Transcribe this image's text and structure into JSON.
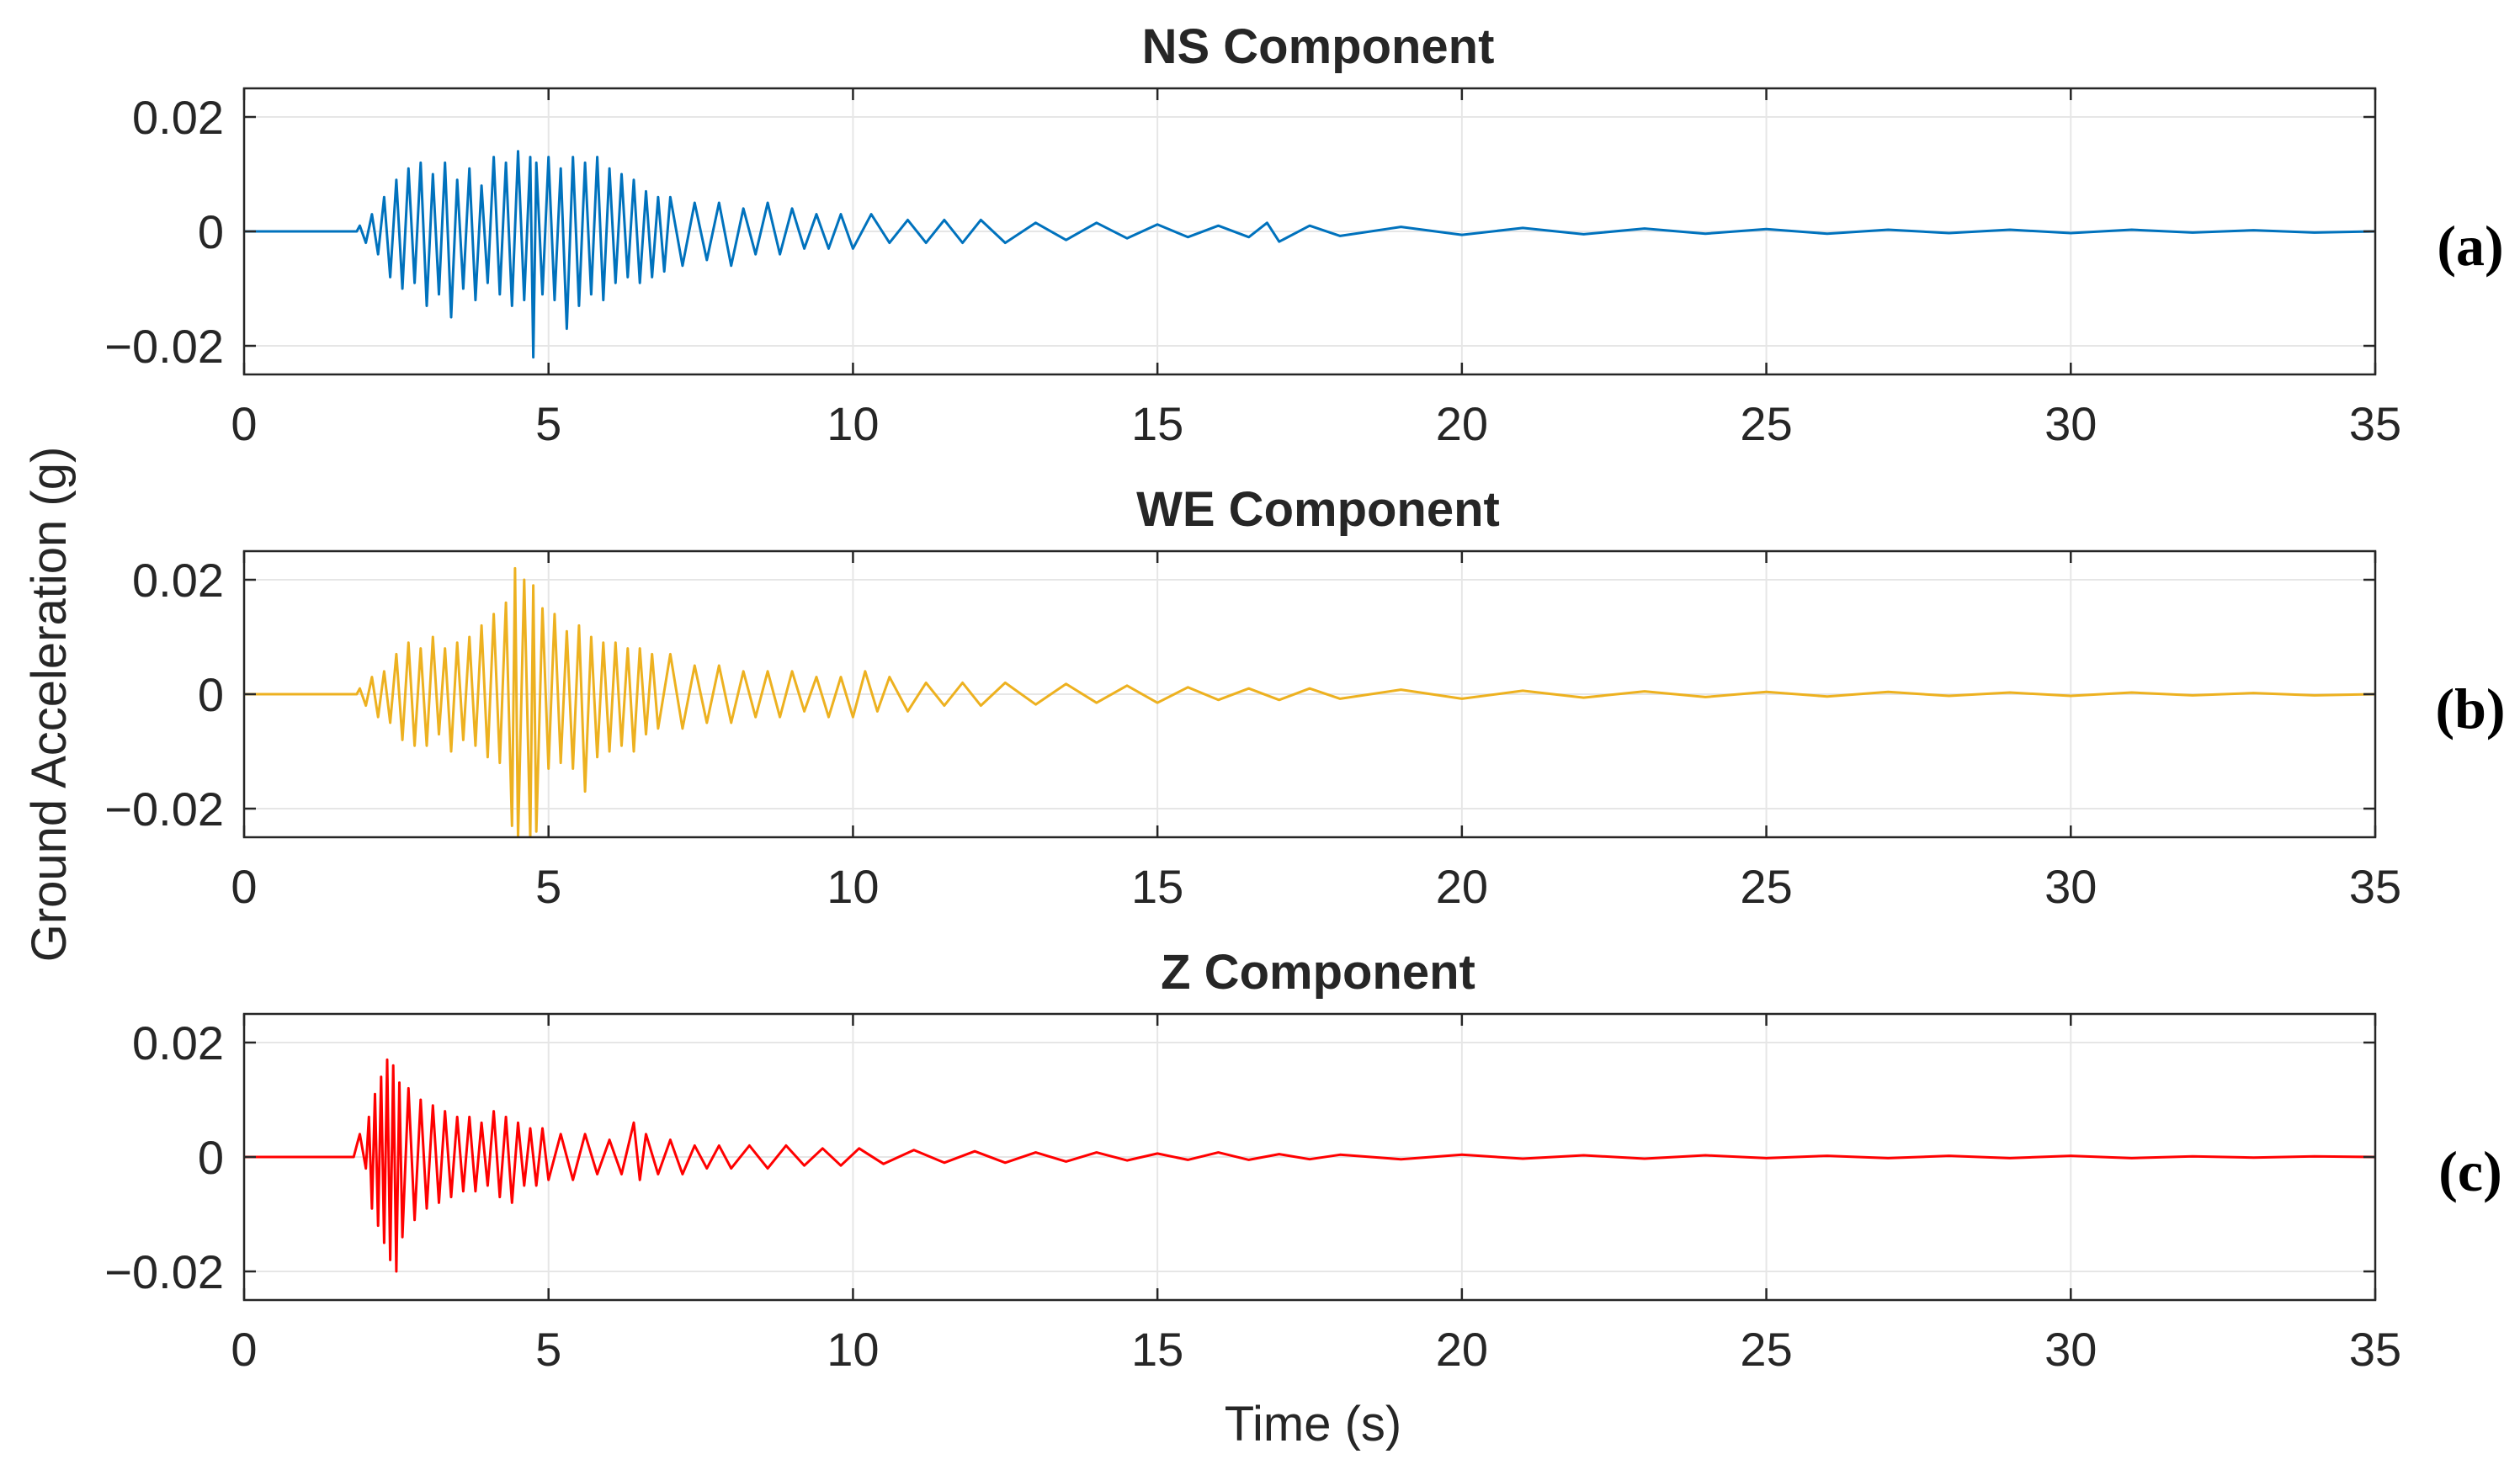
{
  "figure": {
    "ylabel": "Ground Acceleration (g)",
    "xlabel": "Time (s)"
  },
  "chart_data": [
    {
      "type": "line",
      "title": "NS Component",
      "panel_label": "(a)",
      "color": "#0072BD",
      "xlim": [
        0,
        35
      ],
      "ylim": [
        -0.025,
        0.025
      ],
      "xticks": [
        0,
        5,
        10,
        15,
        20,
        25,
        30,
        35
      ],
      "yticks": [
        -0.02,
        0,
        0.02
      ],
      "xtick_labels": [
        "0",
        "5",
        "10",
        "15",
        "20",
        "25",
        "30",
        "35"
      ],
      "ytick_labels": [
        "−0.02",
        "0",
        "0.02"
      ],
      "grid": true,
      "series": [
        {
          "x": [
            0,
            1.85,
            1.9,
            2.0,
            2.1,
            2.2,
            2.3,
            2.4,
            2.5,
            2.6,
            2.7,
            2.8,
            2.9,
            3.0,
            3.1,
            3.2,
            3.3,
            3.4,
            3.5,
            3.6,
            3.7,
            3.8,
            3.9,
            4.0,
            4.1,
            4.2,
            4.3,
            4.4,
            4.5,
            4.6,
            4.7,
            4.75,
            4.8,
            4.9,
            5.0,
            5.1,
            5.2,
            5.3,
            5.4,
            5.5,
            5.6,
            5.7,
            5.8,
            5.9,
            6.0,
            6.1,
            6.2,
            6.3,
            6.4,
            6.5,
            6.6,
            6.7,
            6.8,
            6.9,
            7.0,
            7.2,
            7.4,
            7.6,
            7.8,
            8.0,
            8.2,
            8.4,
            8.6,
            8.8,
            9.0,
            9.2,
            9.4,
            9.6,
            9.8,
            10.0,
            10.3,
            10.6,
            10.9,
            11.2,
            11.5,
            11.8,
            12.1,
            12.5,
            13.0,
            13.5,
            14.0,
            14.5,
            15.0,
            15.5,
            16.0,
            16.5,
            16.8,
            17.0,
            17.5,
            18.0,
            19.0,
            20.0,
            21.0,
            22.0,
            23.0,
            24.0,
            25.0,
            26.0,
            27.0,
            28.0,
            29.0,
            30.0,
            31.0,
            32.0,
            33.0,
            34.0,
            35.0
          ],
          "y": [
            0,
            0,
            0.001,
            -0.002,
            0.003,
            -0.004,
            0.006,
            -0.008,
            0.009,
            -0.01,
            0.011,
            -0.009,
            0.012,
            -0.013,
            0.01,
            -0.011,
            0.012,
            -0.015,
            0.009,
            -0.01,
            0.011,
            -0.012,
            0.008,
            -0.009,
            0.013,
            -0.011,
            0.012,
            -0.013,
            0.014,
            -0.012,
            0.013,
            -0.022,
            0.012,
            -0.011,
            0.013,
            -0.012,
            0.011,
            -0.017,
            0.013,
            -0.013,
            0.012,
            -0.011,
            0.013,
            -0.012,
            0.011,
            -0.009,
            0.01,
            -0.008,
            0.009,
            -0.009,
            0.007,
            -0.008,
            0.006,
            -0.007,
            0.006,
            -0.006,
            0.005,
            -0.005,
            0.005,
            -0.006,
            0.004,
            -0.004,
            0.005,
            -0.004,
            0.004,
            -0.003,
            0.003,
            -0.003,
            0.003,
            -0.003,
            0.003,
            -0.002,
            0.002,
            -0.002,
            0.002,
            -0.002,
            0.002,
            -0.002,
            0.0015,
            -0.0015,
            0.0015,
            -0.0012,
            0.0012,
            -0.001,
            0.001,
            -0.001,
            0.0015,
            -0.0018,
            0.001,
            -0.0008,
            0.0008,
            -0.0006,
            0.0006,
            -0.0005,
            0.0005,
            -0.0004,
            0.0004,
            -0.0004,
            0.0003,
            -0.0003,
            0.0003,
            -0.0003,
            0.0003,
            -0.0002,
            0.0002,
            -0.0002,
            0
          ]
        }
      ]
    },
    {
      "type": "line",
      "title": "WE Component",
      "panel_label": "(b)",
      "color": "#EDB120",
      "xlim": [
        0,
        35
      ],
      "ylim": [
        -0.025,
        0.025
      ],
      "xticks": [
        0,
        5,
        10,
        15,
        20,
        25,
        30,
        35
      ],
      "yticks": [
        -0.02,
        0,
        0.02
      ],
      "xtick_labels": [
        "0",
        "5",
        "10",
        "15",
        "20",
        "25",
        "30",
        "35"
      ],
      "ytick_labels": [
        "−0.02",
        "0",
        "0.02"
      ],
      "grid": true,
      "series": [
        {
          "x": [
            0,
            1.85,
            1.9,
            2.0,
            2.1,
            2.2,
            2.3,
            2.4,
            2.5,
            2.6,
            2.7,
            2.8,
            2.9,
            3.0,
            3.1,
            3.2,
            3.3,
            3.4,
            3.5,
            3.6,
            3.7,
            3.8,
            3.9,
            4.0,
            4.1,
            4.2,
            4.3,
            4.4,
            4.45,
            4.5,
            4.6,
            4.7,
            4.75,
            4.8,
            4.9,
            5.0,
            5.1,
            5.2,
            5.3,
            5.4,
            5.5,
            5.6,
            5.7,
            5.8,
            5.9,
            6.0,
            6.1,
            6.2,
            6.3,
            6.4,
            6.5,
            6.6,
            6.7,
            6.8,
            7.0,
            7.2,
            7.4,
            7.6,
            7.8,
            8.0,
            8.2,
            8.4,
            8.6,
            8.8,
            9.0,
            9.2,
            9.4,
            9.6,
            9.8,
            10.0,
            10.2,
            10.4,
            10.6,
            10.9,
            11.2,
            11.5,
            11.8,
            12.1,
            12.5,
            13.0,
            13.5,
            14.0,
            14.5,
            15.0,
            15.5,
            16.0,
            16.5,
            17.0,
            17.5,
            18.0,
            19.0,
            20.0,
            21.0,
            22.0,
            23.0,
            24.0,
            25.0,
            26.0,
            27.0,
            28.0,
            29.0,
            30.0,
            31.0,
            32.0,
            33.0,
            34.0,
            35.0
          ],
          "y": [
            0,
            0,
            0.001,
            -0.002,
            0.003,
            -0.004,
            0.004,
            -0.005,
            0.007,
            -0.008,
            0.009,
            -0.009,
            0.008,
            -0.009,
            0.01,
            -0.007,
            0.008,
            -0.01,
            0.009,
            -0.008,
            0.01,
            -0.009,
            0.012,
            -0.011,
            0.014,
            -0.012,
            0.016,
            -0.023,
            0.022,
            -0.025,
            0.02,
            -0.025,
            0.019,
            -0.024,
            0.015,
            -0.013,
            0.014,
            -0.012,
            0.011,
            -0.013,
            0.012,
            -0.017,
            0.01,
            -0.011,
            0.009,
            -0.01,
            0.009,
            -0.009,
            0.008,
            -0.01,
            0.008,
            -0.007,
            0.007,
            -0.006,
            0.007,
            -0.006,
            0.005,
            -0.005,
            0.005,
            -0.005,
            0.004,
            -0.004,
            0.004,
            -0.004,
            0.004,
            -0.003,
            0.003,
            -0.004,
            0.003,
            -0.004,
            0.004,
            -0.003,
            0.003,
            -0.003,
            0.002,
            -0.002,
            0.002,
            -0.002,
            0.002,
            -0.0018,
            0.0018,
            -0.0015,
            0.0015,
            -0.0015,
            0.0012,
            -0.001,
            0.001,
            -0.001,
            0.001,
            -0.0008,
            0.0008,
            -0.0008,
            0.0006,
            -0.0006,
            0.0005,
            -0.0005,
            0.0004,
            -0.0004,
            0.0004,
            -0.0003,
            0.0003,
            -0.0003,
            0.0003,
            -0.0002,
            0.0002,
            -0.0002,
            0
          ]
        }
      ]
    },
    {
      "type": "line",
      "title": "Z Component",
      "panel_label": "(c)",
      "color": "#FF0000",
      "xlim": [
        0,
        35
      ],
      "ylim": [
        -0.025,
        0.025
      ],
      "xticks": [
        0,
        5,
        10,
        15,
        20,
        25,
        30,
        35
      ],
      "yticks": [
        -0.02,
        0,
        0.02
      ],
      "xtick_labels": [
        "0",
        "5",
        "10",
        "15",
        "20",
        "25",
        "30",
        "35"
      ],
      "ytick_labels": [
        "−0.02",
        "0",
        "0.02"
      ],
      "grid": true,
      "series": [
        {
          "x": [
            0,
            1.8,
            1.85,
            1.9,
            2.0,
            2.05,
            2.1,
            2.15,
            2.2,
            2.25,
            2.3,
            2.35,
            2.4,
            2.45,
            2.5,
            2.55,
            2.6,
            2.7,
            2.8,
            2.9,
            3.0,
            3.1,
            3.2,
            3.3,
            3.4,
            3.5,
            3.6,
            3.7,
            3.8,
            3.9,
            4.0,
            4.1,
            4.2,
            4.3,
            4.4,
            4.5,
            4.6,
            4.7,
            4.8,
            4.9,
            5.0,
            5.2,
            5.4,
            5.6,
            5.8,
            6.0,
            6.2,
            6.4,
            6.5,
            6.6,
            6.8,
            7.0,
            7.2,
            7.4,
            7.6,
            7.8,
            8.0,
            8.3,
            8.6,
            8.9,
            9.2,
            9.5,
            9.8,
            10.1,
            10.5,
            11.0,
            11.5,
            12.0,
            12.5,
            13.0,
            13.5,
            14.0,
            14.5,
            15.0,
            15.5,
            16.0,
            16.5,
            17.0,
            17.5,
            18.0,
            19.0,
            20.0,
            21.0,
            22.0,
            23.0,
            24.0,
            25.0,
            26.0,
            27.0,
            28.0,
            29.0,
            30.0,
            31.0,
            32.0,
            33.0,
            34.0,
            35.0
          ],
          "y": [
            0,
            0,
            0.002,
            0.004,
            -0.002,
            0.007,
            -0.009,
            0.011,
            -0.012,
            0.014,
            -0.015,
            0.017,
            -0.018,
            0.016,
            -0.02,
            0.013,
            -0.014,
            0.012,
            -0.011,
            0.01,
            -0.009,
            0.009,
            -0.008,
            0.008,
            -0.007,
            0.007,
            -0.006,
            0.007,
            -0.006,
            0.006,
            -0.005,
            0.008,
            -0.007,
            0.007,
            -0.008,
            0.006,
            -0.005,
            0.005,
            -0.005,
            0.005,
            -0.004,
            0.004,
            -0.004,
            0.004,
            -0.003,
            0.003,
            -0.003,
            0.006,
            -0.004,
            0.004,
            -0.003,
            0.003,
            -0.003,
            0.002,
            -0.002,
            0.002,
            -0.002,
            0.002,
            -0.002,
            0.002,
            -0.0015,
            0.0015,
            -0.0015,
            0.0015,
            -0.0012,
            0.0012,
            -0.001,
            0.001,
            -0.001,
            0.0008,
            -0.0008,
            0.0008,
            -0.0006,
            0.0006,
            -0.0005,
            0.0008,
            -0.0005,
            0.0005,
            -0.0004,
            0.0004,
            -0.0004,
            0.0004,
            -0.0003,
            0.0003,
            -0.0003,
            0.0003,
            -0.0002,
            0.0002,
            -0.0002,
            0.0002,
            -0.0002,
            0.0002,
            -0.0002,
            0.0001,
            -0.0001,
            0.0001,
            0
          ]
        }
      ]
    }
  ]
}
